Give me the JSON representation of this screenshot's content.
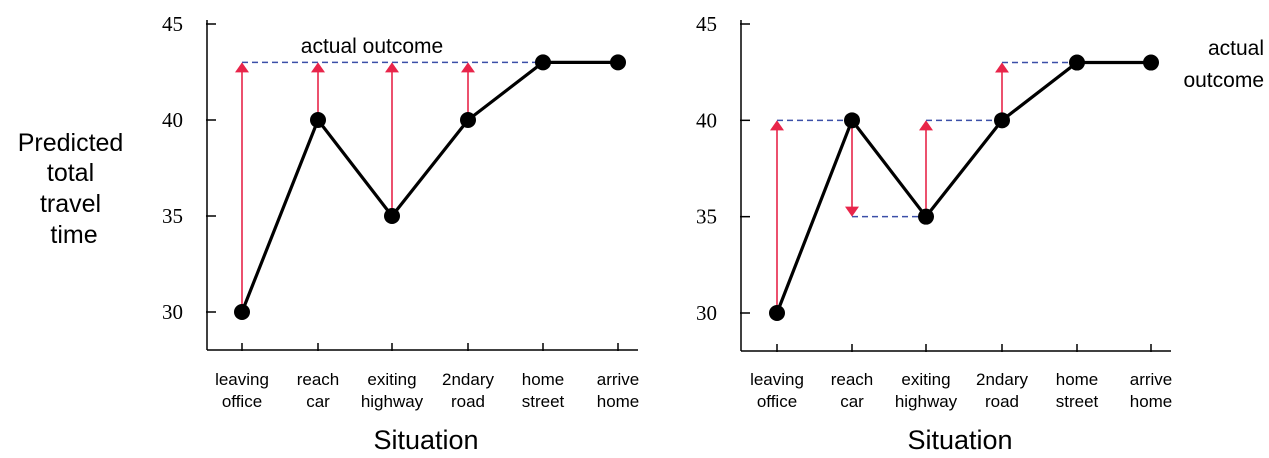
{
  "ylabel_lines": [
    "Predicted",
    "total",
    "travel",
    "time"
  ],
  "chart_data": [
    {
      "type": "line",
      "categories": [
        [
          "leaving",
          "office"
        ],
        [
          "reach",
          "car"
        ],
        [
          "exiting",
          "highway"
        ],
        [
          "2ndary",
          "road"
        ],
        [
          "home",
          "street"
        ],
        [
          "arrive",
          "home"
        ]
      ],
      "series": [
        {
          "values": [
            30,
            40,
            35,
            40,
            43,
            43
          ]
        }
      ],
      "actual_outcome": 43,
      "annotation": [
        "actual outcome"
      ],
      "xlabel": "Situation",
      "ylim": [
        28,
        45
      ],
      "yticks": [
        30,
        35,
        40,
        45
      ],
      "grid": false,
      "updates": "toward-final-outcome",
      "colors": {
        "line": "#000000",
        "arrow": "#e8254a",
        "reference": "#3b4fa8"
      }
    },
    {
      "type": "line",
      "categories": [
        [
          "leaving",
          "office"
        ],
        [
          "reach",
          "car"
        ],
        [
          "exiting",
          "highway"
        ],
        [
          "2ndary",
          "road"
        ],
        [
          "home",
          "street"
        ],
        [
          "arrive",
          "home"
        ]
      ],
      "series": [
        {
          "values": [
            30,
            40,
            35,
            40,
            43,
            43
          ]
        }
      ],
      "actual_outcome": 43,
      "annotation": [
        "actual",
        "outcome"
      ],
      "xlabel": "Situation",
      "ylim": [
        28,
        45
      ],
      "yticks": [
        30,
        35,
        40,
        45
      ],
      "grid": false,
      "updates": "toward-next-prediction",
      "colors": {
        "line": "#000000",
        "arrow": "#e8254a",
        "reference": "#3b4fa8"
      }
    }
  ]
}
